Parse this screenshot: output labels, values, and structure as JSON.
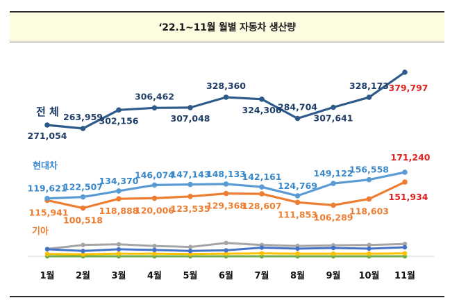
{
  "chart_data": {
    "type": "line",
    "title": "‘22.1~11월 월별 자동차 생산량",
    "categories": [
      "1월",
      "2월",
      "3월",
      "4월",
      "5월",
      "6월",
      "7월",
      "8월",
      "9월",
      "10월",
      "11월"
    ],
    "series": [
      {
        "name": "전 체",
        "color": "#2e5a8a",
        "label_color": "#1f3d66",
        "last_label_color": "#e02020",
        "values": [
          271054,
          263959,
          302156,
          306462,
          307048,
          328360,
          324306,
          284704,
          307641,
          328173,
          379797
        ],
        "labels": [
          "271,054",
          "263,959",
          "302,156",
          "306,462",
          "307,048",
          "328,360",
          "324,306",
          "284,704",
          "307,641",
          "328,173",
          "379,797"
        ]
      },
      {
        "name": "현대차",
        "color": "#5b9bd5",
        "label_color": "#3a87c9",
        "last_label_color": "#e02020",
        "values": [
          119621,
          122507,
          134370,
          146074,
          147143,
          148133,
          142161,
          124769,
          149122,
          156558,
          171240
        ],
        "labels": [
          "119,621",
          "122,507",
          "134,370",
          "146,074",
          "147,143",
          "148,133",
          "142,161",
          "124,769",
          "149,122",
          "156,558",
          "171,240"
        ]
      },
      {
        "name": "기아",
        "color": "#ed7d31",
        "label_color": "#ed7d31",
        "last_label_color": "#e02020",
        "values": [
          115941,
          100518,
          118888,
          120006,
          123535,
          129368,
          128607,
          111853,
          106289,
          118603,
          151934
        ],
        "labels": [
          "115,941",
          "100,518",
          "118,888",
          "120,006",
          "123,535",
          "129,368",
          "128,607",
          "111,853",
          "106,289",
          "118,603",
          "151,934"
        ]
      },
      {
        "name": "",
        "color": "#a5a5a5",
        "values": [
          22000,
          34000,
          36000,
          31000,
          28000,
          40000,
          34000,
          31000,
          33000,
          34000,
          37000
        ]
      },
      {
        "name": "",
        "color": "#4472c4",
        "values": [
          21000,
          16000,
          21000,
          19000,
          16000,
          18000,
          26000,
          23000,
          25000,
          23000,
          27000
        ]
      },
      {
        "name": "",
        "color": "#ffc000",
        "values": [
          7000,
          6000,
          8000,
          8000,
          7000,
          8000,
          9000,
          8000,
          8000,
          8000,
          9000
        ]
      },
      {
        "name": "",
        "color": "#70ad47",
        "values": [
          0,
          0,
          0,
          0,
          0,
          0,
          0,
          0,
          0,
          0,
          0
        ]
      }
    ]
  }
}
